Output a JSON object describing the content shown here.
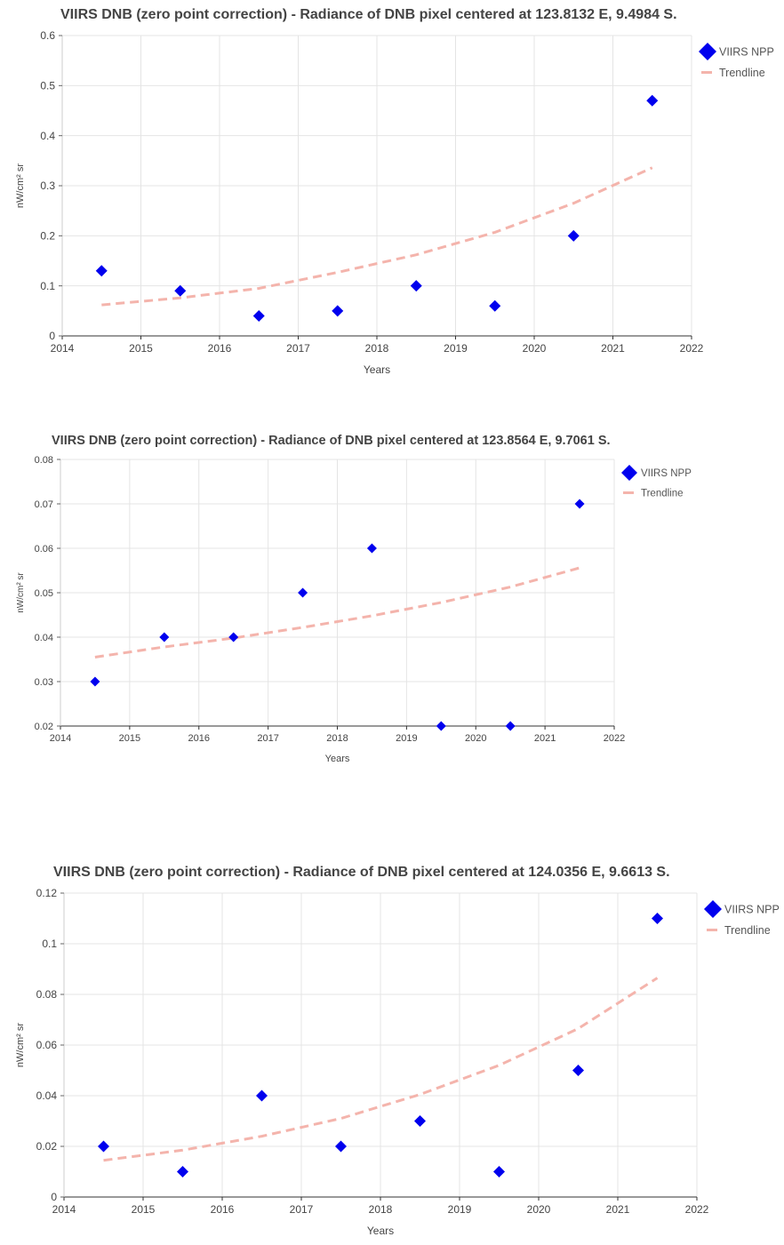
{
  "chart_data": [
    {
      "type": "scatter",
      "title": "VIIRS DNB (zero point correction) - Radiance of DNB pixel centered at 123.8132 E, 9.4984 S.",
      "xlabel": "Years",
      "ylabel": "nW/cm² sr",
      "xlim": [
        2014,
        2022
      ],
      "ylim": [
        0,
        0.6
      ],
      "xticks": [
        "2014",
        "2015",
        "2016",
        "2017",
        "2018",
        "2019",
        "2020",
        "2021",
        "2022"
      ],
      "yticks": [
        "0",
        "0.1",
        "0.2",
        "0.3",
        "0.4",
        "0.5",
        "0.6"
      ],
      "grid": true,
      "legend_position": "top-right",
      "series": [
        {
          "name": "VIIRS NPP",
          "kind": "scatter",
          "marker": "diamond",
          "color": "#0000ee",
          "x": [
            2014.5,
            2015.5,
            2016.5,
            2017.5,
            2018.5,
            2019.5,
            2020.5,
            2021.5
          ],
          "y": [
            0.13,
            0.09,
            0.04,
            0.05,
            0.1,
            0.06,
            0.2,
            0.47
          ]
        },
        {
          "name": "Trendline",
          "kind": "line",
          "dashed": true,
          "color": "#f4b4ac",
          "x": [
            2014.5,
            2015.5,
            2016.5,
            2017.5,
            2018.5,
            2019.5,
            2020.5,
            2021.5
          ],
          "y": [
            0.062,
            0.076,
            0.095,
            0.127,
            0.162,
            0.207,
            0.265,
            0.336
          ]
        }
      ]
    },
    {
      "type": "scatter",
      "title": "VIIRS DNB (zero point correction) - Radiance of DNB pixel centered at 123.8564 E, 9.7061 S.",
      "xlabel": "Years",
      "ylabel": "nW/cm² sr",
      "xlim": [
        2014,
        2022
      ],
      "ylim": [
        0.02,
        0.08
      ],
      "xticks": [
        "2014",
        "2015",
        "2016",
        "2017",
        "2018",
        "2019",
        "2020",
        "2021",
        "2022"
      ],
      "yticks": [
        "0.02",
        "0.03",
        "0.04",
        "0.05",
        "0.06",
        "0.07",
        "0.08"
      ],
      "grid": true,
      "legend_position": "top-right",
      "series": [
        {
          "name": "VIIRS NPP",
          "kind": "scatter",
          "marker": "diamond",
          "color": "#0000ee",
          "x": [
            2014.5,
            2015.5,
            2016.5,
            2017.5,
            2018.5,
            2019.5,
            2020.5,
            2021.5
          ],
          "y": [
            0.03,
            0.04,
            0.04,
            0.05,
            0.06,
            0.02,
            0.02,
            0.07
          ]
        },
        {
          "name": "Trendline",
          "kind": "line",
          "dashed": true,
          "color": "#f4b4ac",
          "x": [
            2014.5,
            2015.5,
            2016.5,
            2017.5,
            2018.5,
            2019.5,
            2020.5,
            2021.5
          ],
          "y": [
            0.0355,
            0.0378,
            0.0398,
            0.0422,
            0.0448,
            0.0478,
            0.0513,
            0.0556
          ]
        }
      ]
    },
    {
      "type": "scatter",
      "title": "VIIRS DNB (zero point correction) - Radiance of DNB pixel centered at 124.0356 E, 9.6613 S.",
      "xlabel": "Years",
      "ylabel": "nW/cm² sr",
      "xlim": [
        2014,
        2022
      ],
      "ylim": [
        0,
        0.12
      ],
      "xticks": [
        "2014",
        "2015",
        "2016",
        "2017",
        "2018",
        "2019",
        "2020",
        "2021",
        "2022"
      ],
      "yticks": [
        "0",
        "0.02",
        "0.04",
        "0.06",
        "0.08",
        "0.1",
        "0.12"
      ],
      "grid": true,
      "legend_position": "top-right",
      "series": [
        {
          "name": "VIIRS NPP",
          "kind": "scatter",
          "marker": "diamond",
          "color": "#0000ee",
          "x": [
            2014.5,
            2015.5,
            2016.5,
            2017.5,
            2018.5,
            2019.5,
            2020.5,
            2021.5
          ],
          "y": [
            0.02,
            0.01,
            0.04,
            0.02,
            0.03,
            0.01,
            0.05,
            0.11
          ]
        },
        {
          "name": "Trendline",
          "kind": "line",
          "dashed": true,
          "color": "#f4b4ac",
          "x": [
            2014.5,
            2015.5,
            2016.5,
            2017.5,
            2018.5,
            2019.5,
            2020.5,
            2021.5
          ],
          "y": [
            0.0145,
            0.0185,
            0.024,
            0.031,
            0.0405,
            0.052,
            0.0665,
            0.0865
          ]
        }
      ]
    }
  ]
}
